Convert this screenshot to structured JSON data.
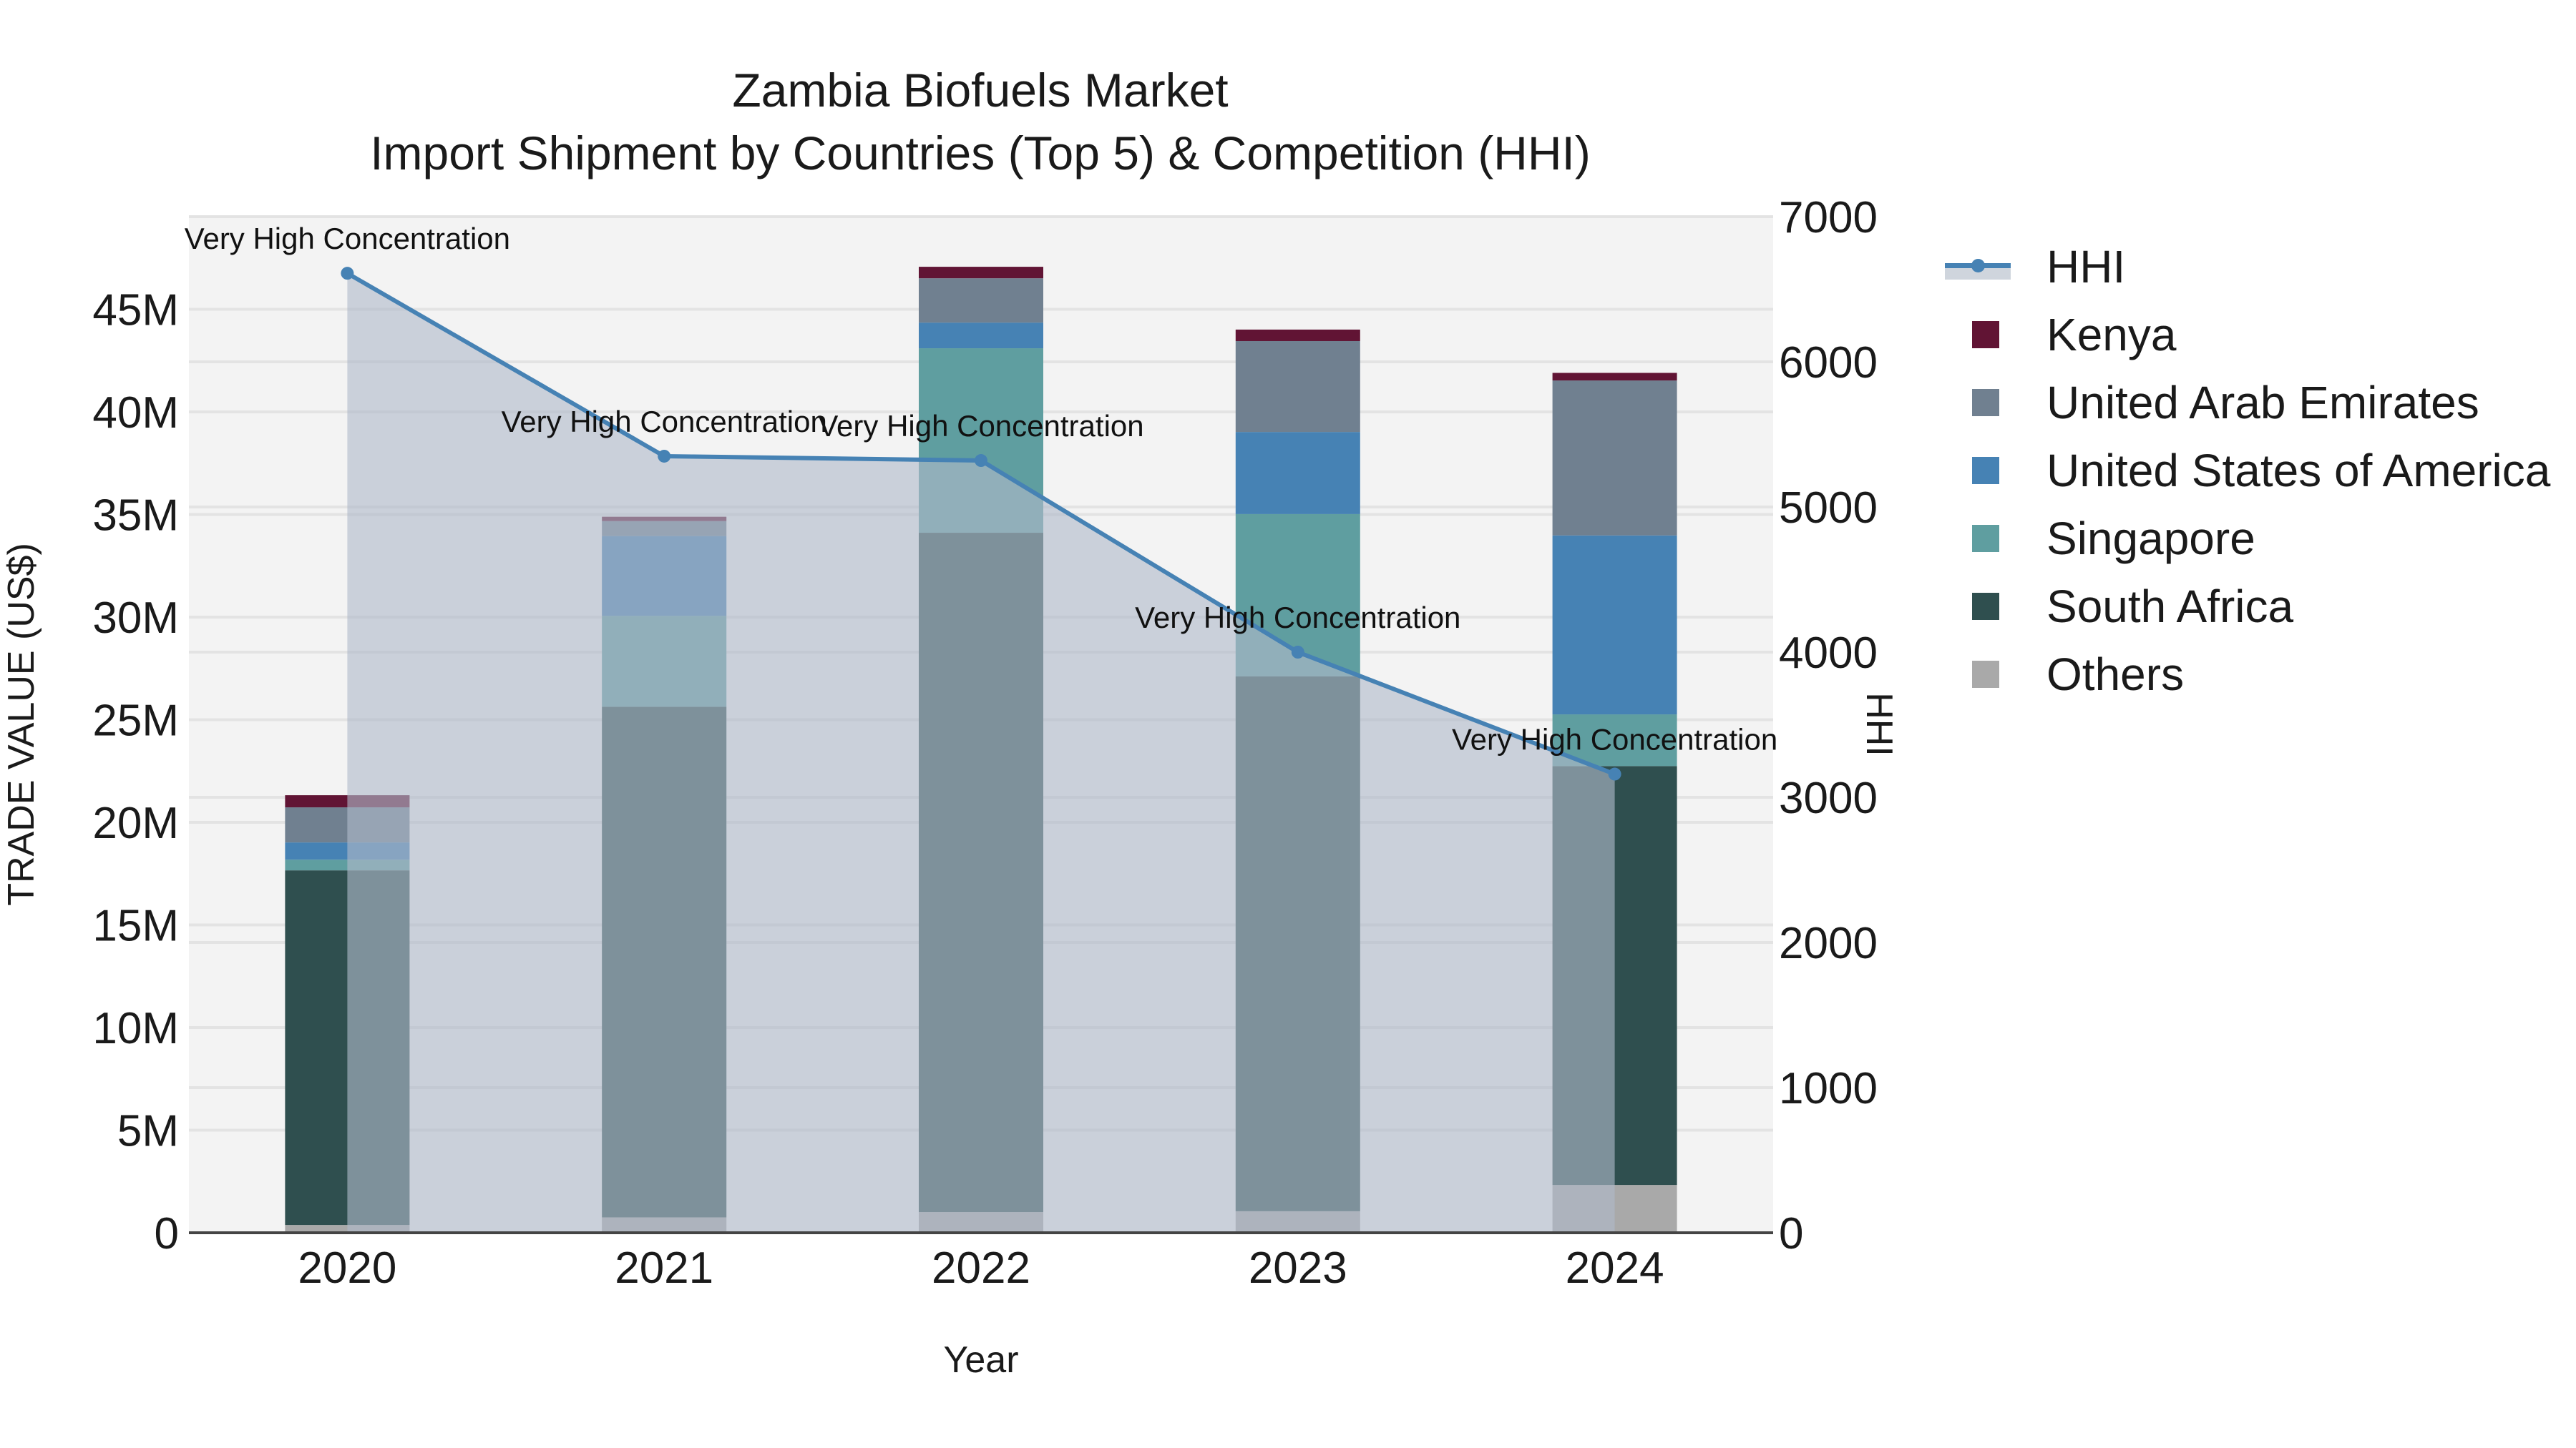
{
  "title": {
    "line1": "Zambia Biofuels Market",
    "line2": "Import Shipment by Countries (Top 5) & Competition (HHI)"
  },
  "axes": {
    "x_title": "Year",
    "y_left_title": "TRADE VALUE (US$)",
    "y_right_title": "HHI",
    "y_left_ticks": [
      "0",
      "5M",
      "10M",
      "15M",
      "20M",
      "25M",
      "30M",
      "35M",
      "40M",
      "45M"
    ],
    "y_right_ticks": [
      "0",
      "1000",
      "2000",
      "3000",
      "4000",
      "5000",
      "6000",
      "7000"
    ]
  },
  "legend": {
    "items": [
      {
        "label": "HHI",
        "color": "#4682b4",
        "kind": "line"
      },
      {
        "label": "Kenya",
        "color": "#611434",
        "kind": "bar"
      },
      {
        "label": "United Arab Emirates",
        "color": "#708090",
        "kind": "bar"
      },
      {
        "label": "United States of America",
        "color": "#4682b4",
        "kind": "bar"
      },
      {
        "label": "Singapore",
        "color": "#5f9ea0",
        "kind": "bar"
      },
      {
        "label": "South Africa",
        "color": "#2f4f4f",
        "kind": "bar"
      },
      {
        "label": "Others",
        "color": "#a9a9a9",
        "kind": "bar"
      }
    ]
  },
  "chart_data": {
    "type": "bar",
    "stacked": true,
    "title": "Zambia Biofuels Market — Import Shipment by Countries (Top 5) & Competition (HHI)",
    "xlabel": "Year",
    "ylabel": "TRADE VALUE (US$)",
    "y2label": "HHI",
    "ylim": [
      0,
      49500000
    ],
    "y2lim": [
      0,
      7000
    ],
    "grid": true,
    "legend_position": "right",
    "categories": [
      "2020",
      "2021",
      "2022",
      "2023",
      "2024"
    ],
    "series": [
      {
        "name": "Others",
        "color": "#a9a9a9",
        "values": [
          380000,
          750000,
          1010000,
          1050000,
          2330000
        ]
      },
      {
        "name": "South Africa",
        "color": "#2f4f4f",
        "values": [
          17280000,
          24880000,
          33100000,
          26060000,
          20410000
        ]
      },
      {
        "name": "Singapore",
        "color": "#5f9ea0",
        "values": [
          520000,
          4430000,
          8990000,
          7910000,
          2520000
        ]
      },
      {
        "name": "United States of America",
        "color": "#4682b4",
        "values": [
          840000,
          3890000,
          1250000,
          4000000,
          8720000
        ]
      },
      {
        "name": "United Arab Emirates",
        "color": "#708090",
        "values": [
          1710000,
          730000,
          2160000,
          4430000,
          7550000
        ]
      },
      {
        "name": "Kenya",
        "color": "#611434",
        "values": [
          590000,
          210000,
          560000,
          560000,
          370000
        ]
      }
    ],
    "line_series": {
      "name": "HHI",
      "axis": "right",
      "color": "#4682b4",
      "fill": "tozeroy",
      "values": [
        6610,
        5350,
        5320,
        4000,
        3160
      ],
      "annotations": [
        "Very High Concentration",
        "Very High Concentration",
        "Very High Concentration",
        "Very High Concentration",
        "Very High Concentration"
      ]
    }
  }
}
